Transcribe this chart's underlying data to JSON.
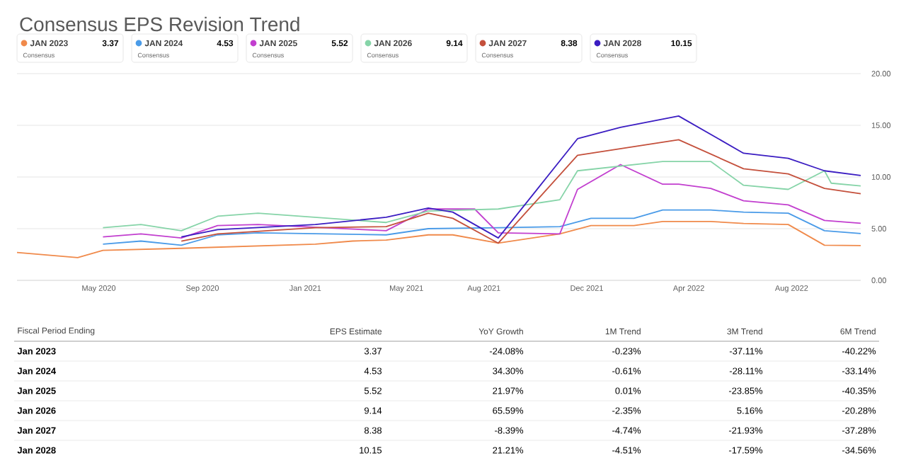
{
  "chart_data": {
    "type": "line",
    "title": "Consensus EPS Revision Trend",
    "legend_title": "Consensus",
    "legend": "top left",
    "grid": "y",
    "marker": "none",
    "line_style": "solid",
    "xlim": [
      "2020-01-25",
      "2022-10-22"
    ],
    "ylim": [
      0,
      20
    ],
    "xticks": [
      {
        "value": "2020-05",
        "label": "May 2020"
      },
      {
        "value": "2020-09",
        "label": "Sep 2020"
      },
      {
        "value": "2021-01",
        "label": "Jan 2021"
      },
      {
        "value": "2021-05",
        "label": "May 2021"
      },
      {
        "value": "2021-08",
        "label": "Aug 2021"
      },
      {
        "value": "2021-12",
        "label": "Dec 2021"
      },
      {
        "value": "2022-04",
        "label": "Apr 2022"
      },
      {
        "value": "2022-08",
        "label": "Aug 2022"
      }
    ],
    "yticks": [
      {
        "value": 0,
        "label": "0.00"
      },
      {
        "value": 5,
        "label": "5.00"
      },
      {
        "value": 10,
        "label": "10.00"
      },
      {
        "value": 15,
        "label": "15.00"
      },
      {
        "value": 20,
        "label": "20.00"
      }
    ],
    "series": [
      {
        "name": "JAN 2023",
        "color": "#f08a4b",
        "x": [
          "2020-01-25",
          "2020-04-06",
          "2020-05-06",
          "2020-08-07",
          "2021-01-13",
          "2021-02-26",
          "2021-04-07",
          "2021-05-27",
          "2021-06-25",
          "2021-08-18",
          "2021-10-30",
          "2021-12-06",
          "2022-01-26",
          "2022-03-01",
          "2022-04-27",
          "2022-06-05",
          "2022-07-28",
          "2022-09-09",
          "2022-10-22"
        ],
        "values": [
          2.7,
          2.2,
          2.9,
          3.1,
          3.5,
          3.8,
          3.9,
          4.4,
          4.4,
          3.6,
          4.5,
          5.3,
          5.3,
          5.7,
          5.7,
          5.5,
          5.4,
          3.4,
          3.37
        ]
      },
      {
        "name": "JAN 2024",
        "color": "#4a9be8",
        "x": [
          "2020-05-06",
          "2020-06-20",
          "2020-08-07",
          "2020-09-19",
          "2020-11-06",
          "2021-04-07",
          "2021-05-27",
          "2021-08-18",
          "2021-10-30",
          "2021-12-06",
          "2022-01-26",
          "2022-03-01",
          "2022-04-27",
          "2022-06-05",
          "2022-07-28",
          "2022-09-09",
          "2022-10-22"
        ],
        "values": [
          3.5,
          3.8,
          3.4,
          4.4,
          4.6,
          4.4,
          5.0,
          5.1,
          5.2,
          6.0,
          6.0,
          6.8,
          6.8,
          6.6,
          6.5,
          4.8,
          4.53
        ]
      },
      {
        "name": "JAN 2025",
        "color": "#c23fcf",
        "x": [
          "2020-05-06",
          "2020-06-20",
          "2020-08-07",
          "2020-09-19",
          "2020-11-06",
          "2021-04-07",
          "2021-05-27",
          "2021-07-21",
          "2021-08-18",
          "2021-10-30",
          "2021-11-20",
          "2022-01-10",
          "2022-03-01",
          "2022-03-20",
          "2022-04-27",
          "2022-06-05",
          "2022-07-28",
          "2022-09-09",
          "2022-10-22"
        ],
        "values": [
          4.2,
          4.5,
          4.1,
          5.3,
          5.4,
          4.8,
          6.9,
          6.9,
          4.6,
          4.5,
          8.8,
          11.2,
          9.3,
          9.3,
          8.9,
          7.7,
          7.3,
          5.8,
          5.52
        ]
      },
      {
        "name": "JAN 2026",
        "color": "#86d4a8",
        "x": [
          "2020-05-06",
          "2020-06-20",
          "2020-08-07",
          "2020-09-19",
          "2020-11-06",
          "2021-04-07",
          "2021-05-27",
          "2021-08-18",
          "2021-10-30",
          "2021-11-20",
          "2022-03-01",
          "2022-04-27",
          "2022-06-05",
          "2022-07-28",
          "2022-09-09",
          "2022-09-17",
          "2022-10-22"
        ],
        "values": [
          5.1,
          5.4,
          4.8,
          6.2,
          6.5,
          5.6,
          6.7,
          6.9,
          7.8,
          10.6,
          11.5,
          11.5,
          9.2,
          8.8,
          10.6,
          9.4,
          9.14
        ]
      },
      {
        "name": "JAN 2027",
        "color": "#c4503c",
        "x": [
          "2020-08-07",
          "2020-09-19",
          "2021-01-13",
          "2021-04-07",
          "2021-05-27",
          "2021-06-25",
          "2021-08-18",
          "2021-11-20",
          "2022-03-20",
          "2022-06-05",
          "2022-07-28",
          "2022-09-09",
          "2022-10-22"
        ],
        "values": [
          3.8,
          4.5,
          5.1,
          5.2,
          6.5,
          6.0,
          3.6,
          12.1,
          13.6,
          10.8,
          10.3,
          8.9,
          8.38
        ]
      },
      {
        "name": "JAN 2028",
        "color": "#3b1dc2",
        "x": [
          "2020-08-07",
          "2020-09-19",
          "2021-01-13",
          "2021-04-07",
          "2021-05-27",
          "2021-06-25",
          "2021-08-18",
          "2021-11-20",
          "2022-01-10",
          "2022-03-20",
          "2022-06-05",
          "2022-07-28",
          "2022-09-09",
          "2022-10-22"
        ],
        "values": [
          4.2,
          4.9,
          5.4,
          6.1,
          7.0,
          6.6,
          4.1,
          13.7,
          14.8,
          15.9,
          12.3,
          11.8,
          10.6,
          10.15
        ]
      }
    ],
    "annotations": [
      "3.37",
      "4.53",
      "5.52",
      "9.14",
      "8.38",
      "10.15",
      "Fiscal Period Ending",
      "EPS Estimate",
      "YoY Growth",
      "1M Trend",
      "3M Trend",
      "6M Trend",
      "Jan 2023",
      "3.37",
      "-24.08%",
      "-0.23%",
      "-37.11%",
      "-40.22%",
      "Jan 2024",
      "4.53",
      "34.30%",
      "-0.61%",
      "-28.11%",
      "-33.14%",
      "Jan 2025",
      "5.52",
      "21.97%",
      "0.01%",
      "-23.85%",
      "-40.35%",
      "Jan 2026",
      "9.14",
      "65.59%",
      "-2.35%",
      "5.16%",
      "-20.28%",
      "Jan 2027",
      "8.38",
      "-8.39%",
      "-4.74%",
      "-21.93%",
      "-37.28%",
      "Jan 2028",
      "10.15",
      "21.21%",
      "-4.51%",
      "-17.59%",
      "-34.56%"
    ]
  }
}
